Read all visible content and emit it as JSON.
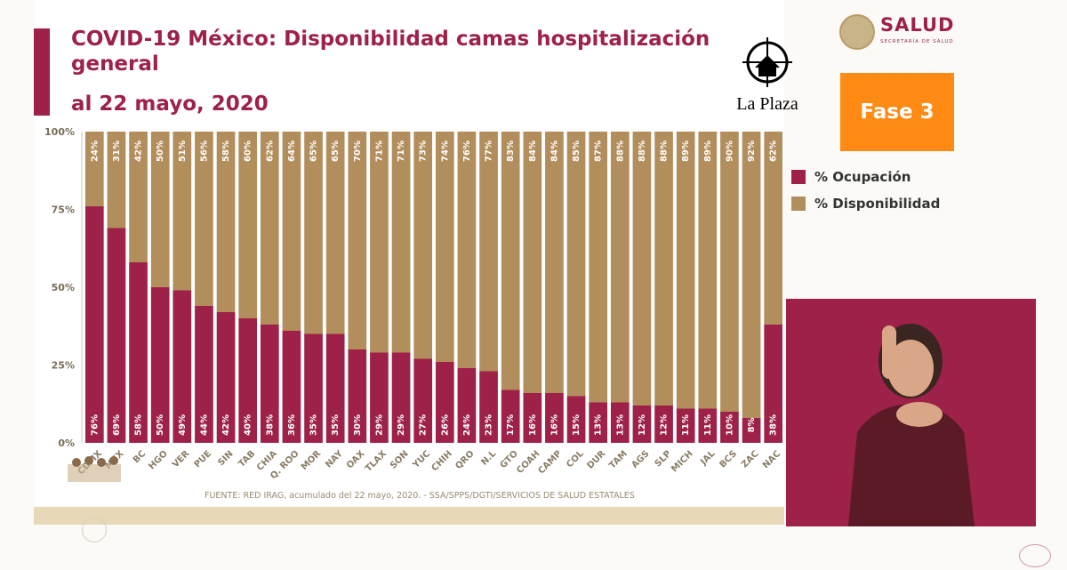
{
  "header": {
    "title": "COVID-19 México: Disponibilidad camas hospitalización general",
    "subtitle": "al 22 mayo, 2020"
  },
  "brand": {
    "plaza_label": "La Plaza",
    "salud_label": "SALUD",
    "salud_sub": "SECRETARÍA DE SALUD",
    "fase_label": "Fase 3"
  },
  "legend": {
    "ocupacion": "% Ocupación",
    "disponibilidad": "% Disponibilidad"
  },
  "source": "FUENTE: RED IRAG, acumulado del 22 mayo, 2020. -   SSA/SPPS/DGTI/SERVICIOS DE SALUD ESTATALES",
  "colors": {
    "ocupacion": "#9d2148",
    "disponibilidad": "#b38e5d",
    "accent": "#ff8a14"
  },
  "chart_data": {
    "type": "bar",
    "stacked": true,
    "orientation": "vertical",
    "categories": [
      "CDMX",
      "MEX",
      "BC",
      "HGO",
      "VER",
      "PUE",
      "SIN",
      "TAB",
      "CHIA",
      "Q. ROO",
      "MOR",
      "NAY",
      "OAX",
      "TLAX",
      "SON",
      "YUC",
      "CHIH",
      "QRO",
      "N.L",
      "GTO",
      "COAH",
      "CAMP",
      "COL",
      "DUR",
      "TAM",
      "AGS",
      "SLP",
      "MICH",
      "JAL",
      "BCS",
      "ZAC",
      "NAC"
    ],
    "series": [
      {
        "name": "% Ocupación",
        "values": [
          76,
          69,
          58,
          50,
          49,
          44,
          42,
          40,
          38,
          36,
          35,
          35,
          30,
          29,
          29,
          27,
          26,
          24,
          23,
          17,
          16,
          16,
          15,
          13,
          13,
          12,
          12,
          11,
          11,
          10,
          8,
          38
        ]
      },
      {
        "name": "% Disponibilidad",
        "values": [
          24,
          31,
          42,
          50,
          51,
          56,
          58,
          60,
          62,
          64,
          65,
          65,
          70,
          71,
          71,
          73,
          74,
          76,
          77,
          83,
          84,
          84,
          85,
          87,
          88,
          88,
          88,
          89,
          89,
          90,
          92,
          62
        ]
      }
    ],
    "bar_labels_top": [
      "24%",
      "31%",
      "42%",
      "50%",
      "51%",
      "56%",
      "58%",
      "60%",
      "62%",
      "64%",
      "65%",
      "65%",
      "70%",
      "71%",
      "71%",
      "73%",
      "74%",
      "76%",
      "77%",
      "83%",
      "84%",
      "84%",
      "85%",
      "87%",
      "88%",
      "88%",
      "88%",
      "89%",
      "89%",
      "90%",
      "92%",
      "62%"
    ],
    "bar_labels_bottom": [
      "76%",
      "69%",
      "58%",
      "50%",
      "49%",
      "44%",
      "42%",
      "40%",
      "38%",
      "36%",
      "35%",
      "35%",
      "30%",
      "29%",
      "29%",
      "27%",
      "26%",
      "24%",
      "23%",
      "17%",
      "16%",
      "16%",
      "15%",
      "13%",
      "13%",
      "12%",
      "12%",
      "11%",
      "11%",
      "10%",
      "8%",
      "38%"
    ],
    "ylim": [
      0,
      100
    ],
    "yticks": [
      "0%",
      "25%",
      "50%",
      "75%",
      "100%"
    ],
    "legend_position": "right",
    "grid": false
  }
}
